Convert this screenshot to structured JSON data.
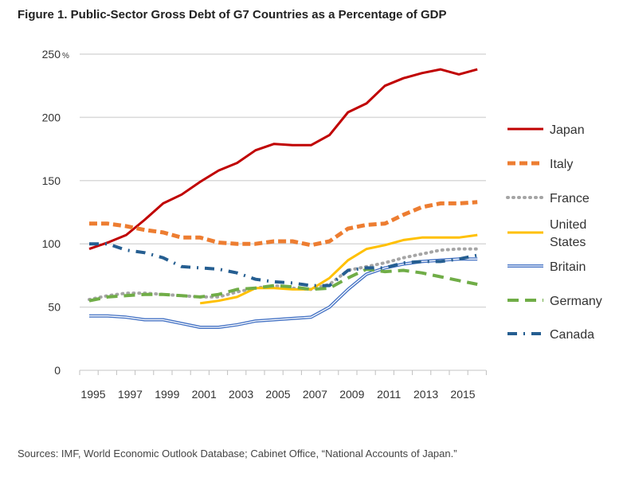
{
  "title": "Figure 1. Public-Sector Gross Debt of G7 Countries as a Percentage of GDP",
  "source": "Sources: IMF, World Economic Outlook Database; Cabinet Office, “National Accounts of Japan.”",
  "chart_data": {
    "type": "line",
    "title": "Figure 1. Public-Sector Gross Debt of G7 Countries as a Percentage of GDP",
    "xlabel": "",
    "ylabel": "",
    "y_unit": "%",
    "ylim": [
      0,
      250
    ],
    "yticks": [
      "0",
      "50",
      "100",
      "150",
      "200",
      "250"
    ],
    "xtick_labels": [
      "1995",
      "1997",
      "1999",
      "2001",
      "2003",
      "2005",
      "2007",
      "2009",
      "2011",
      "2013",
      "2015"
    ],
    "x": [
      1995,
      1996,
      1997,
      1998,
      1999,
      2000,
      2001,
      2002,
      2003,
      2004,
      2005,
      2006,
      2007,
      2008,
      2009,
      2010,
      2011,
      2012,
      2013,
      2014,
      2015,
      2016
    ],
    "grid": "horizontal",
    "legend": "right",
    "series": [
      {
        "name": "Japan",
        "color": "#c00000",
        "style": "solid",
        "values": [
          96,
          101,
          107,
          119,
          132,
          139,
          149,
          158,
          164,
          174,
          179,
          178,
          178,
          186,
          204,
          211,
          225,
          231,
          235,
          238,
          234,
          238
        ]
      },
      {
        "name": "Italy",
        "color": "#ed7d31",
        "style": "dash",
        "values": [
          116,
          116,
          114,
          111,
          109,
          105,
          105,
          101,
          100,
          100,
          102,
          102,
          99,
          102,
          112,
          115,
          116,
          123,
          129,
          132,
          132,
          133
        ]
      },
      {
        "name": "France",
        "color": "#a5a5a5",
        "style": "dot",
        "values": [
          56,
          59,
          61,
          61,
          60,
          59,
          58,
          58,
          62,
          65,
          67,
          65,
          64,
          68,
          79,
          82,
          85,
          89,
          92,
          95,
          96,
          96
        ]
      },
      {
        "name": "United States",
        "color": "#ffc000",
        "style": "solid",
        "values": [
          null,
          null,
          null,
          null,
          null,
          null,
          53,
          55,
          58,
          65,
          65,
          64,
          64,
          73,
          87,
          96,
          99,
          103,
          105,
          105,
          105,
          107
        ]
      },
      {
        "name": "Britain",
        "color": "#4472c4",
        "style": "double",
        "values": [
          43,
          43,
          42,
          40,
          40,
          37,
          34,
          34,
          36,
          39,
          40,
          41,
          42,
          50,
          64,
          76,
          81,
          84,
          86,
          87,
          88,
          88
        ]
      },
      {
        "name": "Germany",
        "color": "#70ad47",
        "style": "longdash",
        "values": [
          55,
          58,
          59,
          60,
          60,
          59,
          58,
          60,
          64,
          65,
          67,
          66,
          64,
          65,
          73,
          80,
          78,
          79,
          77,
          74,
          71,
          68
        ]
      },
      {
        "name": "Canada",
        "color": "#255e91",
        "style": "dashdot",
        "values": [
          100,
          100,
          95,
          93,
          89,
          82,
          81,
          80,
          77,
          72,
          70,
          69,
          67,
          67,
          79,
          81,
          81,
          85,
          86,
          86,
          88,
          91
        ]
      }
    ]
  }
}
